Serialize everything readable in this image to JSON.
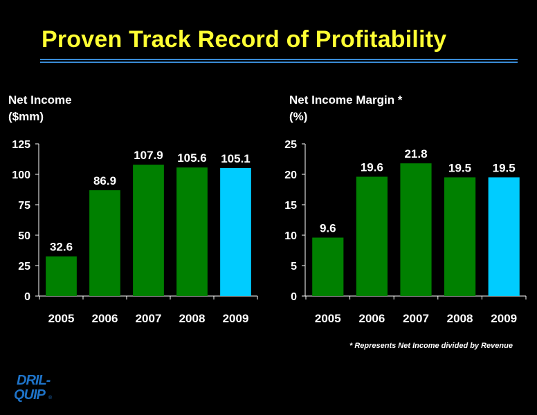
{
  "slide": {
    "title": "Proven Track Record of Profitability",
    "footnote": "* Represents Net Income divided by Revenue",
    "logo_text": "DRIL-QUIP"
  },
  "colors": {
    "title": "#ffff33",
    "rule": "#3a8cd6",
    "bar_green": "#008000",
    "bar_highlight": "#00ccff",
    "background": "#000000"
  },
  "chart_data": [
    {
      "type": "bar",
      "title_line1": "Net Income",
      "title_line2": "($mm)",
      "categories": [
        "2005",
        "2006",
        "2007",
        "2008",
        "2009"
      ],
      "values": [
        32.6,
        86.9,
        107.9,
        105.6,
        105.1
      ],
      "value_labels": [
        "32.6",
        "86.9",
        "107.9",
        "105.6",
        "105.1"
      ],
      "ylim": [
        0,
        125
      ],
      "yticks": [
        0,
        25,
        50,
        75,
        100,
        125
      ],
      "highlight_index": 4,
      "grid": false,
      "legend": "none"
    },
    {
      "type": "bar",
      "title_line1": "Net Income Margin *",
      "title_line2": "(%)",
      "categories": [
        "2005",
        "2006",
        "2007",
        "2008",
        "2009"
      ],
      "values": [
        9.6,
        19.6,
        21.8,
        19.5,
        19.5
      ],
      "value_labels": [
        "9.6",
        "19.6",
        "21.8",
        "19.5",
        "19.5"
      ],
      "ylim": [
        0,
        25
      ],
      "yticks": [
        0,
        5,
        10,
        15,
        20,
        25
      ],
      "highlight_index": 4,
      "grid": false,
      "legend": "none"
    }
  ]
}
